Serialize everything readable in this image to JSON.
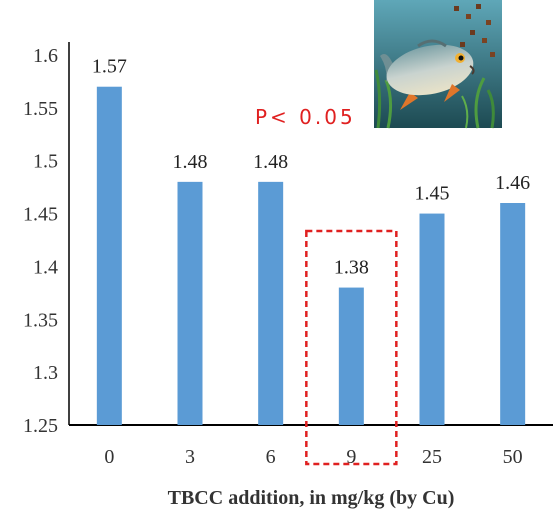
{
  "chart_data": {
    "type": "bar",
    "categories": [
      "0",
      "3",
      "6",
      "9",
      "25",
      "50"
    ],
    "values": [
      1.57,
      1.48,
      1.48,
      1.38,
      1.45,
      1.46
    ],
    "data_labels": [
      "1.57",
      "1.48",
      "1.48",
      "1.38",
      "1.45",
      "1.46"
    ],
    "xlabel": "TBCC addition, in mg/kg (by Cu)",
    "ylabel": "",
    "ylim": [
      1.25,
      1.6
    ],
    "yticks": [
      "1.25",
      "1.3",
      "1.35",
      "1.4",
      "1.45",
      "1.5",
      "1.55",
      "1.6"
    ],
    "grid": false,
    "legend": "none",
    "bar_color": "#5B9BD5",
    "highlight": {
      "category": "9",
      "style": "dashed box",
      "color": "#E02020",
      "annotation": "P< 0.05"
    },
    "inset_image": "fish"
  }
}
